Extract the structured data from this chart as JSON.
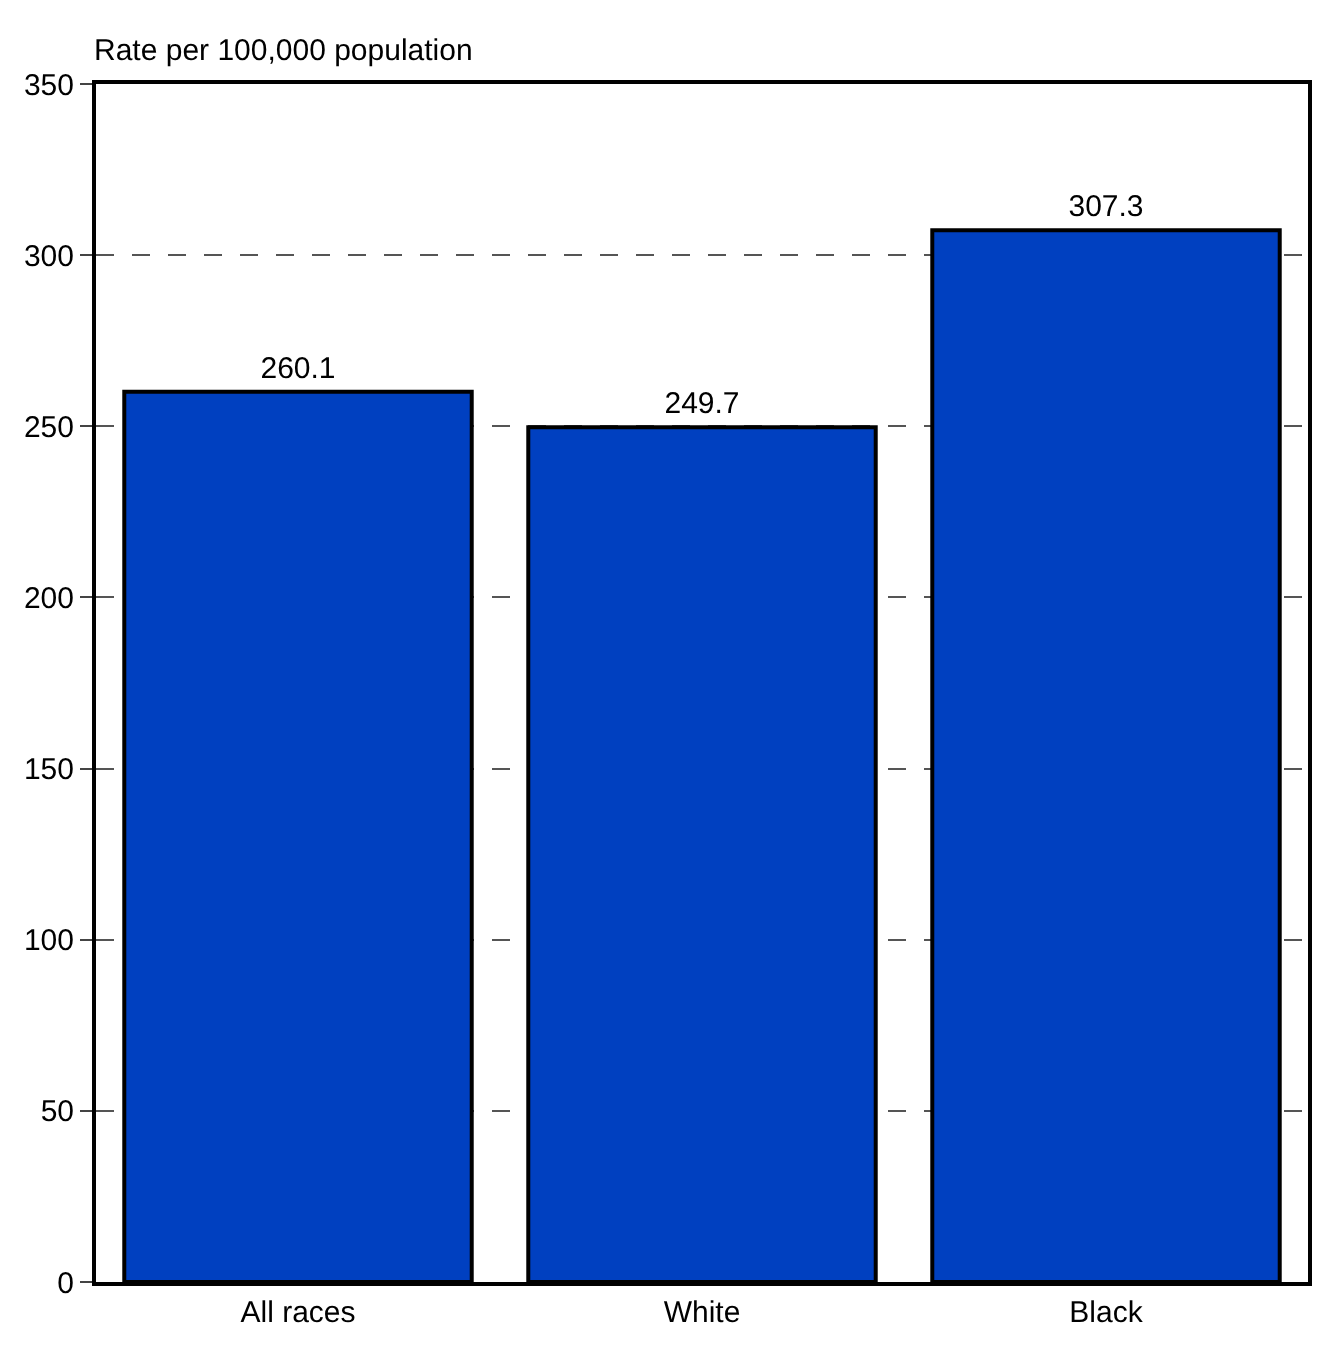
{
  "chart_data": {
    "type": "bar",
    "ylabel": "Rate per 100,000 population",
    "categories": [
      "All races",
      "White",
      "Black"
    ],
    "values": [
      260.1,
      249.7,
      307.3
    ],
    "color": "#0040c0",
    "ylim": [
      0,
      350
    ],
    "yticks": [
      0,
      50,
      100,
      150,
      200,
      250,
      300,
      350
    ],
    "grid": "y",
    "data_labels": true,
    "legend": false
  }
}
